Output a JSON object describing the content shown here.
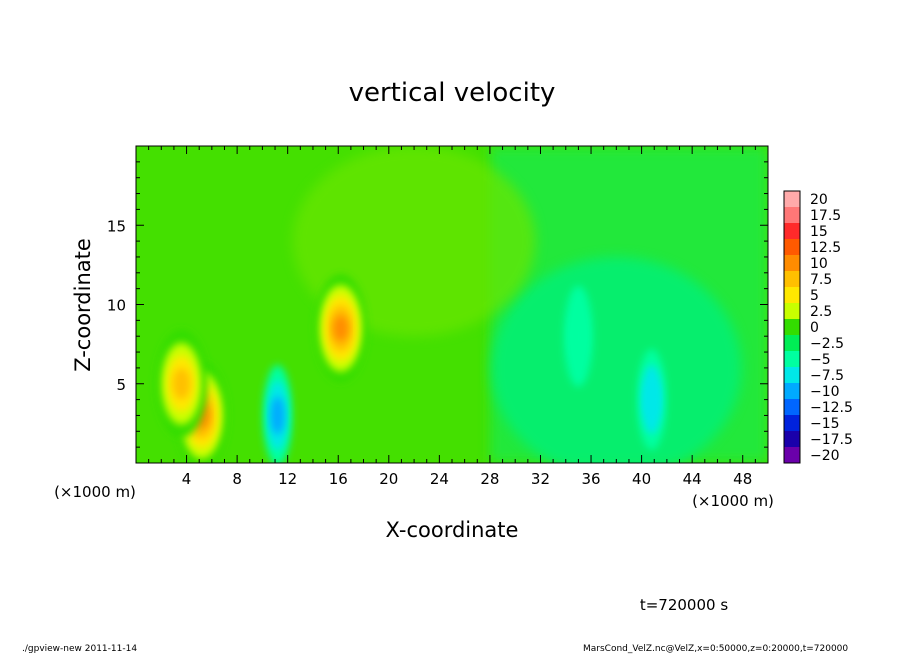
{
  "chart_data": {
    "type": "heatmap",
    "title": "vertical velocity",
    "xlabel": "X-coordinate",
    "ylabel": "Z-coordinate",
    "x_unit_note": "(×1000 m)",
    "x_unit_note_right": "(×1000 m)",
    "xlim": [
      0,
      50
    ],
    "ylim": [
      0,
      20
    ],
    "x_ticks": [
      "4",
      "8",
      "12",
      "16",
      "20",
      "24",
      "28",
      "32",
      "36",
      "40",
      "44",
      "48"
    ],
    "x_tick_values": [
      4,
      8,
      12,
      16,
      20,
      24,
      28,
      32,
      36,
      40,
      44,
      48
    ],
    "y_ticks": [
      "5",
      "10",
      "15"
    ],
    "y_tick_values": [
      5,
      10,
      15
    ],
    "colorbar": {
      "labels": [
        "20",
        "17.5",
        "15",
        "12.5",
        "10",
        "7.5",
        "5",
        "2.5",
        "0",
        "−2.5",
        "−5",
        "−7.5",
        "−10",
        "−12.5",
        "−15",
        "−17.5",
        "−20"
      ],
      "levels": [
        20,
        17.5,
        15,
        12.5,
        10,
        7.5,
        5,
        2.5,
        0,
        -2.5,
        -5,
        -7.5,
        -10,
        -12.5,
        -15,
        -17.5,
        -20
      ],
      "colors": [
        "#ffaaaa",
        "#ff7777",
        "#ff2a2a",
        "#ff5a00",
        "#ff8c00",
        "#ffc000",
        "#ffe800",
        "#c8ff00",
        "#33dd00",
        "#00ee55",
        "#00ffa0",
        "#00e8e8",
        "#00aaff",
        "#0066ff",
        "#0022dd",
        "#1a00aa",
        "#6a00aa"
      ]
    },
    "features": [
      {
        "kind": "max",
        "x": 5.2,
        "z": 3.0,
        "value": 11.5
      },
      {
        "kind": "max",
        "x": 3.6,
        "z": 5.0,
        "value": 8.0
      },
      {
        "kind": "max",
        "x": 16.2,
        "z": 8.5,
        "value": 11.0
      },
      {
        "kind": "min",
        "x": 11.2,
        "z": 3.0,
        "value": -7.5
      },
      {
        "kind": "min",
        "x": 40.8,
        "z": 4.0,
        "value": -6.0
      },
      {
        "kind": "min",
        "x": 35.0,
        "z": 8.0,
        "value": -3.5
      }
    ],
    "time_label": "t=720000 s"
  },
  "footer": {
    "left": "./gpview-new  2011-11-14",
    "right": "MarsCond_VelZ.nc@VelZ,x=0:50000,z=0:20000,t=720000"
  }
}
